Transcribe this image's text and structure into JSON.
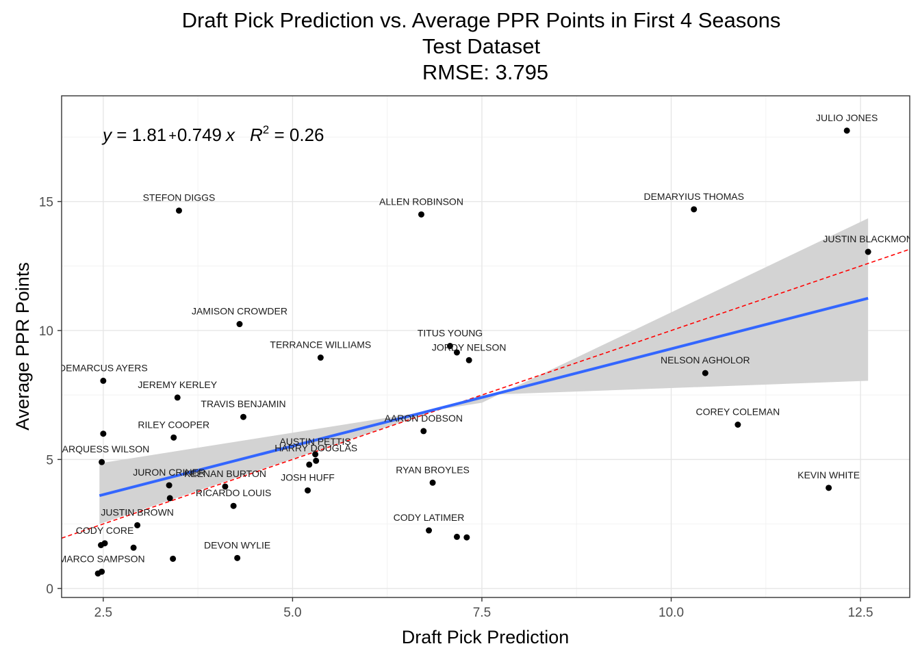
{
  "chart_data": {
    "type": "scatter",
    "title_lines": [
      "Draft Pick Prediction vs. Average PPR Points in First 4 Seasons",
      "Test Dataset",
      "RMSE: 3.795"
    ],
    "xlabel": "Draft Pick Prediction",
    "ylabel": "Average PPR Points",
    "xlim": [
      1.95,
      13.15
    ],
    "ylim": [
      -0.35,
      19.1
    ],
    "x_ticks": [
      2.5,
      5.0,
      7.5,
      10.0,
      12.5
    ],
    "x_tick_labels": [
      "2.5",
      "5.0",
      "7.5",
      "10.0",
      "12.5"
    ],
    "y_ticks": [
      0,
      5,
      10,
      15
    ],
    "y_tick_labels": [
      "0",
      "5",
      "10",
      "15"
    ],
    "grid": true,
    "equation": {
      "y": "y",
      "eq": " = 1.81",
      "plus": "+",
      "rest": "0.749",
      "x": "x",
      "r": "R",
      "sup": "2",
      "r2": " = 0.26"
    },
    "smooth_line": {
      "color": "#3366ff",
      "x": [
        2.45,
        12.6
      ],
      "y": [
        3.6,
        11.25
      ]
    },
    "confidence_band": {
      "color": "#d3d3d3",
      "upper": [
        [
          2.45,
          4.85
        ],
        [
          7.5,
          7.2
        ],
        [
          12.6,
          14.35
        ]
      ],
      "lower": [
        [
          2.45,
          2.5
        ],
        [
          7.5,
          7.5
        ],
        [
          12.6,
          8.05
        ]
      ]
    },
    "identity_line": {
      "color": "#ff0000",
      "style": "dashed",
      "x": [
        1.95,
        13.15
      ],
      "y": [
        1.95,
        13.15
      ]
    },
    "points": [
      {
        "x": 12.32,
        "y": 17.75,
        "label": "JULIO JONES"
      },
      {
        "x": 3.5,
        "y": 14.65,
        "label": "STEFON DIGGS"
      },
      {
        "x": 6.7,
        "y": 14.5,
        "label": "ALLEN ROBINSON"
      },
      {
        "x": 10.3,
        "y": 14.7,
        "label": "DEMARYIUS THOMAS"
      },
      {
        "x": 12.6,
        "y": 13.05,
        "label": "JUSTIN BLACKMON"
      },
      {
        "x": 4.3,
        "y": 10.25,
        "label": "JAMISON CROWDER"
      },
      {
        "x": 7.08,
        "y": 9.4,
        "label": "TITUS YOUNG"
      },
      {
        "x": 7.17,
        "y": 9.15,
        "label": ""
      },
      {
        "x": 7.33,
        "y": 8.85,
        "label": "JORDY NELSON"
      },
      {
        "x": 5.37,
        "y": 8.95,
        "label": "TERRANCE WILLIAMS"
      },
      {
        "x": 10.45,
        "y": 8.35,
        "label": "NELSON AGHOLOR"
      },
      {
        "x": 2.5,
        "y": 8.05,
        "label": "DEMARCUS AYERS"
      },
      {
        "x": 3.48,
        "y": 7.4,
        "label": "JEREMY KERLEY"
      },
      {
        "x": 4.35,
        "y": 6.65,
        "label": "TRAVIS BENJAMIN"
      },
      {
        "x": 10.88,
        "y": 6.35,
        "label": "COREY COLEMAN"
      },
      {
        "x": 6.73,
        "y": 6.1,
        "label": "AARON DOBSON"
      },
      {
        "x": 2.5,
        "y": 6.0,
        "label": ""
      },
      {
        "x": 3.43,
        "y": 5.85,
        "label": "RILEY COOPER"
      },
      {
        "x": 5.3,
        "y": 5.2,
        "label": "AUSTIN PETTIS"
      },
      {
        "x": 5.31,
        "y": 4.95,
        "label": "HARRY DOUGLAS"
      },
      {
        "x": 5.22,
        "y": 4.8,
        "label": ""
      },
      {
        "x": 2.48,
        "y": 4.9,
        "label": "MARQUESS WILSON"
      },
      {
        "x": 6.85,
        "y": 4.1,
        "label": "RYAN BROYLES"
      },
      {
        "x": 4.11,
        "y": 3.95,
        "label": "KEENAN BURTON"
      },
      {
        "x": 3.37,
        "y": 4.0,
        "label": "JURON CRINER"
      },
      {
        "x": 5.2,
        "y": 3.8,
        "label": "JOSH HUFF"
      },
      {
        "x": 12.08,
        "y": 3.9,
        "label": "KEVIN WHITE"
      },
      {
        "x": 3.38,
        "y": 3.5,
        "label": ""
      },
      {
        "x": 4.22,
        "y": 3.2,
        "label": "RICARDO LOUIS"
      },
      {
        "x": 2.95,
        "y": 2.45,
        "label": "JUSTIN BROWN"
      },
      {
        "x": 6.8,
        "y": 2.25,
        "label": "CODY LATIMER"
      },
      {
        "x": 7.17,
        "y": 2.0,
        "label": ""
      },
      {
        "x": 7.3,
        "y": 1.98,
        "label": ""
      },
      {
        "x": 2.52,
        "y": 1.75,
        "label": "CODY CORE"
      },
      {
        "x": 2.47,
        "y": 1.68,
        "label": ""
      },
      {
        "x": 2.9,
        "y": 1.58,
        "label": ""
      },
      {
        "x": 4.27,
        "y": 1.18,
        "label": "DEVON WYLIE"
      },
      {
        "x": 3.42,
        "y": 1.15,
        "label": ""
      },
      {
        "x": 2.48,
        "y": 0.65,
        "label": "MARCO SAMPSON"
      },
      {
        "x": 2.43,
        "y": 0.58,
        "label": ""
      }
    ]
  }
}
